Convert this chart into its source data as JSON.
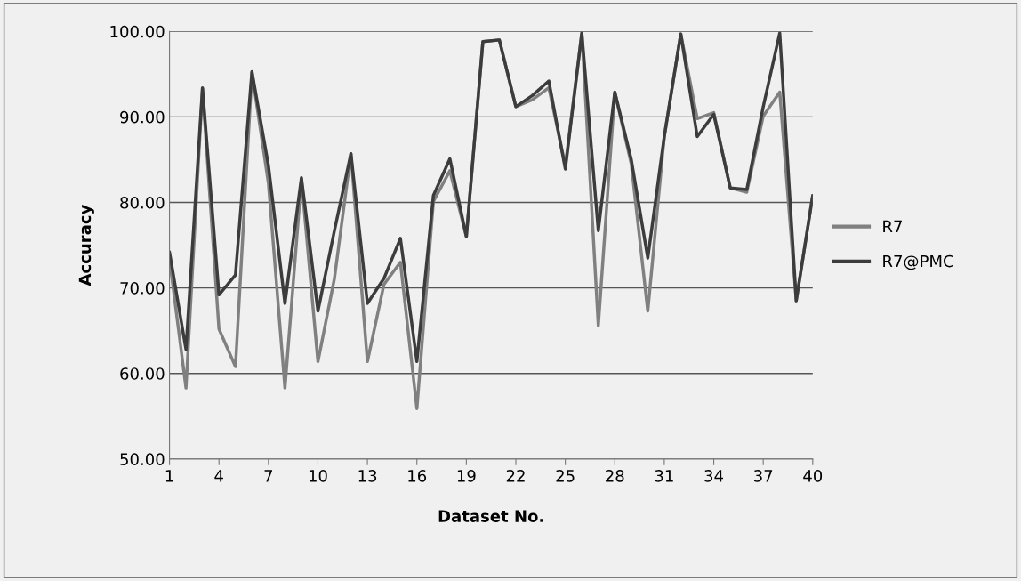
{
  "chart_data": {
    "type": "line",
    "xlabel": "Dataset No.",
    "ylabel": "Accuracy",
    "x": [
      1,
      2,
      3,
      4,
      5,
      6,
      7,
      8,
      9,
      10,
      11,
      12,
      13,
      14,
      15,
      16,
      17,
      18,
      19,
      20,
      21,
      22,
      23,
      24,
      25,
      26,
      27,
      28,
      29,
      30,
      31,
      32,
      33,
      34,
      35,
      36,
      37,
      38,
      39,
      40
    ],
    "series": [
      {
        "name": "R7",
        "color": "#808080",
        "values": [
          73.4,
          58.3,
          93.3,
          65.2,
          60.8,
          95.2,
          82.2,
          58.3,
          82.7,
          61.4,
          71.1,
          85.7,
          61.4,
          70.4,
          73.0,
          55.9,
          80.1,
          83.7,
          76.0,
          98.8,
          99.0,
          91.2,
          92.0,
          93.4,
          84.3,
          99.8,
          65.6,
          92.9,
          84.5,
          67.3,
          87.7,
          99.7,
          89.8,
          90.5,
          81.7,
          81.2,
          90.1,
          92.9,
          68.5,
          80.8
        ]
      },
      {
        "name": "R7@PMC",
        "color": "#3c3c3c",
        "values": [
          74.2,
          62.8,
          93.4,
          69.2,
          71.5,
          95.3,
          84.3,
          68.2,
          82.9,
          67.3,
          76.7,
          85.7,
          68.2,
          71.1,
          75.8,
          61.4,
          80.8,
          85.1,
          76.0,
          98.8,
          99.0,
          91.2,
          92.5,
          94.2,
          83.9,
          99.8,
          76.7,
          92.9,
          85.0,
          73.5,
          87.7,
          99.7,
          87.7,
          90.3,
          81.7,
          81.5,
          91.2,
          99.8,
          68.5,
          80.8
        ]
      }
    ],
    "xlim": [
      1,
      40
    ],
    "xticks": [
      1,
      4,
      7,
      10,
      13,
      16,
      19,
      22,
      25,
      28,
      31,
      34,
      37,
      40
    ],
    "ylim": [
      50,
      100
    ],
    "yticks": [
      {
        "value": 50,
        "label": "50.00"
      },
      {
        "value": 60,
        "label": "60.00"
      },
      {
        "value": 70,
        "label": "70.00"
      },
      {
        "value": 80,
        "label": "80.00"
      },
      {
        "value": 90,
        "label": "90.00"
      },
      {
        "value": 100,
        "label": "100.00"
      }
    ],
    "grid": "y",
    "legend": "right",
    "marker": "none",
    "line_style": "solid"
  }
}
